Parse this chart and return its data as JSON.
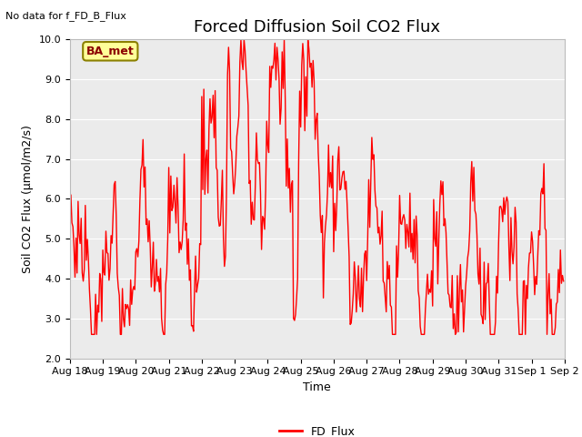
{
  "title": "Forced Diffusion Soil CO2 Flux",
  "xlabel": "Time",
  "ylabel": "Soil CO2 Flux (μmol/m2/s)",
  "ylim": [
    2.0,
    10.0
  ],
  "yticks": [
    2.0,
    3.0,
    4.0,
    5.0,
    6.0,
    7.0,
    8.0,
    9.0,
    10.0
  ],
  "line_color": "#FF0000",
  "line_width": 1.0,
  "legend_label": "FD_Flux",
  "top_left_text": "No data for f_FD_B_Flux",
  "annotation_box_text": "BA_met",
  "annotation_box_color": "#FFFF99",
  "annotation_box_edge_color": "#8B8000",
  "background_color": "#EBEBEB",
  "title_fontsize": 13,
  "label_fontsize": 9,
  "tick_fontsize": 8,
  "xtick_labels": [
    "Aug 18",
    "Aug 19",
    "Aug 20",
    "Aug 21",
    "Aug 22",
    "Aug 23",
    "Aug 24",
    "Aug 25",
    "Aug 26",
    "Aug 27",
    "Aug 28",
    "Aug 29",
    "Aug 30",
    "Aug 31",
    "Sep 1",
    "Sep 2"
  ],
  "num_points": 480,
  "seed": 77
}
